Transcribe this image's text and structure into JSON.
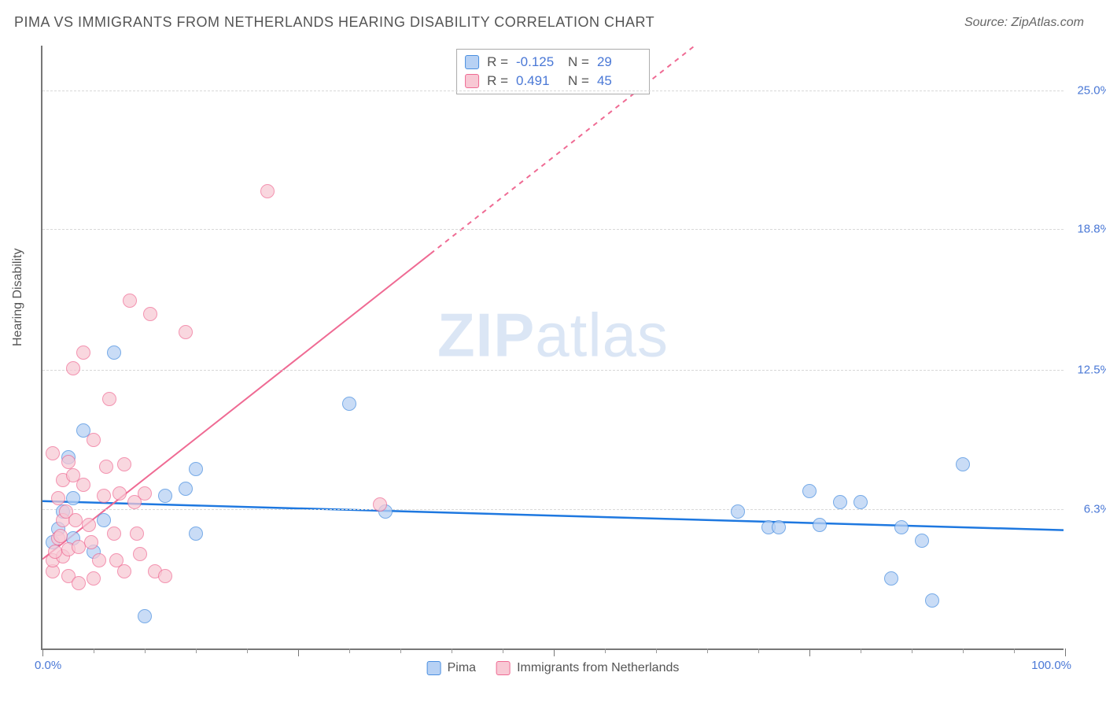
{
  "title": "PIMA VS IMMIGRANTS FROM NETHERLANDS HEARING DISABILITY CORRELATION CHART",
  "source": "Source: ZipAtlas.com",
  "ylabel": "Hearing Disability",
  "watermark_zip": "ZIP",
  "watermark_atlas": "atlas",
  "chart": {
    "type": "scatter-correlation",
    "xlim": [
      0,
      100
    ],
    "ylim": [
      0,
      27
    ],
    "xlabel_min": "0.0%",
    "xlabel_max": "100.0%",
    "ytick_values": [
      6.3,
      12.5,
      18.8,
      25.0
    ],
    "ytick_labels": [
      "6.3%",
      "12.5%",
      "18.8%",
      "25.0%"
    ],
    "xticks_major": [
      0,
      25,
      50,
      75,
      100
    ],
    "xticks_minor": [
      5,
      10,
      15,
      20,
      30,
      35,
      40,
      45,
      55,
      60,
      65,
      70,
      80,
      85,
      90,
      95
    ],
    "background_color": "#ffffff",
    "grid_color": "#d8d8d8",
    "axis_color": "#777777",
    "series": [
      {
        "name": "Pima",
        "marker_color_fill": "#b7d1f4",
        "marker_color_stroke": "#4a8fe0",
        "marker_opacity": 0.75,
        "marker_radius": 9,
        "trend_color": "#1e78e0",
        "trend_width": 2.5,
        "trend_dash": "none",
        "trend_y_at_x0": 6.6,
        "trend_y_at_x100": 5.3,
        "R": "-0.125",
        "N": "29",
        "points": [
          [
            1,
            4.8
          ],
          [
            3,
            5
          ],
          [
            4,
            9.8
          ],
          [
            7,
            13.3
          ],
          [
            10,
            1.5
          ],
          [
            14,
            7.2
          ],
          [
            15,
            8.1
          ],
          [
            15,
            5.2
          ],
          [
            30,
            11
          ],
          [
            33.5,
            6.2
          ],
          [
            68,
            6.2
          ],
          [
            71,
            5.5
          ],
          [
            72,
            5.5
          ],
          [
            75,
            7.1
          ],
          [
            76,
            5.6
          ],
          [
            78,
            6.6
          ],
          [
            80,
            6.6
          ],
          [
            83,
            3.2
          ],
          [
            84,
            5.5
          ],
          [
            86,
            4.9
          ],
          [
            87,
            2.2
          ],
          [
            90,
            8.3
          ],
          [
            2,
            6.2
          ],
          [
            3,
            6.8
          ],
          [
            5,
            4.4
          ],
          [
            6,
            5.8
          ],
          [
            1.5,
            5.4
          ],
          [
            2.5,
            8.6
          ],
          [
            12,
            6.9
          ]
        ]
      },
      {
        "name": "Immigrants from Netherlands",
        "marker_color_fill": "#f8c8d4",
        "marker_color_stroke": "#ef6a93",
        "marker_opacity": 0.72,
        "marker_radius": 9,
        "trend_color": "#ef6a93",
        "trend_width": 2,
        "trend_dash_solid_until_x": 38,
        "trend_dash": "6,6",
        "trend_y_at_x0": 4.0,
        "trend_y_at_x100": 40.0,
        "R": "0.491",
        "N": "45",
        "points": [
          [
            1,
            3.5
          ],
          [
            1,
            4
          ],
          [
            1.5,
            5
          ],
          [
            1.5,
            6.8
          ],
          [
            1,
            8.8
          ],
          [
            2,
            4.2
          ],
          [
            2,
            5.8
          ],
          [
            2,
            7.6
          ],
          [
            2.5,
            3.3
          ],
          [
            2.5,
            4.5
          ],
          [
            2.5,
            8.4
          ],
          [
            3,
            12.6
          ],
          [
            3,
            7.8
          ],
          [
            3.5,
            3.0
          ],
          [
            3.5,
            4.6
          ],
          [
            4,
            7.4
          ],
          [
            4,
            13.3
          ],
          [
            4.5,
            5.6
          ],
          [
            5,
            3.2
          ],
          [
            5,
            9.4
          ],
          [
            5.5,
            4.0
          ],
          [
            6,
            6.9
          ],
          [
            6.5,
            11.2
          ],
          [
            7,
            5.2
          ],
          [
            7.5,
            7.0
          ],
          [
            8,
            3.5
          ],
          [
            8,
            8.3
          ],
          [
            8.5,
            15.6
          ],
          [
            9,
            6.6
          ],
          [
            9.5,
            4.3
          ],
          [
            10,
            7.0
          ],
          [
            10.5,
            15.0
          ],
          [
            11,
            3.5
          ],
          [
            12,
            3.3
          ],
          [
            14,
            14.2
          ],
          [
            22,
            20.5
          ],
          [
            33,
            6.5
          ],
          [
            2.3,
            6.2
          ],
          [
            1.2,
            4.4
          ],
          [
            1.8,
            5.1
          ],
          [
            3.2,
            5.8
          ],
          [
            4.8,
            4.8
          ],
          [
            6.2,
            8.2
          ],
          [
            7.2,
            4.0
          ],
          [
            9.2,
            5.2
          ]
        ]
      }
    ],
    "legend_bottom": [
      "Pima",
      "Immigrants from Netherlands"
    ],
    "stat_legend_R_label": "R  =",
    "stat_legend_N_label": "N  ="
  }
}
